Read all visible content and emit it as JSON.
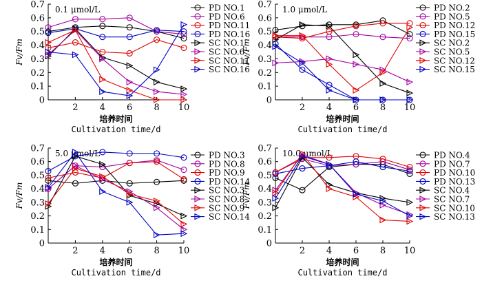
{
  "chart_data": [
    {
      "type": "line",
      "title": "0.1 μmol/L",
      "ylabel": "Fv/Fm",
      "xlabel_cn": "培养时间",
      "xlabel_en": "Cultivation time/d",
      "x": [
        0,
        2,
        4,
        6,
        8,
        10
      ],
      "xticks": [
        2,
        4,
        6,
        8,
        10
      ],
      "yticks": [
        0,
        0.1,
        0.2,
        0.3,
        0.4,
        0.5,
        0.6,
        0.7
      ],
      "xlim": [
        0,
        10
      ],
      "ylim": [
        0,
        0.7
      ],
      "series": [
        {
          "name": "PD NO.1",
          "marker": "circle",
          "color": "#000000",
          "values": [
            0.5,
            0.53,
            0.54,
            0.53,
            0.5,
            0.45
          ]
        },
        {
          "name": "PD NO.6",
          "marker": "circle",
          "color": "#a000a0",
          "values": [
            0.53,
            0.59,
            0.59,
            0.6,
            0.5,
            0.48
          ]
        },
        {
          "name": "PD NO.11",
          "marker": "circle",
          "color": "#e00000",
          "values": [
            0.38,
            0.42,
            0.35,
            0.34,
            0.44,
            0.38
          ]
        },
        {
          "name": "PD NO.16",
          "marker": "circle",
          "color": "#0000c0",
          "values": [
            0.49,
            0.52,
            0.46,
            0.46,
            0.51,
            0.5
          ]
        },
        {
          "name": "SC NO.1",
          "marker": "triangle",
          "color": "#000000",
          "values": [
            0.32,
            0.52,
            0.31,
            0.25,
            0.13,
            0.08
          ]
        },
        {
          "name": "SC NO.6",
          "marker": "triangle",
          "color": "#a000a0",
          "values": [
            0.33,
            0.51,
            0.3,
            0.13,
            0.06,
            0.04
          ]
        },
        {
          "name": "SC NO.11",
          "marker": "triangle",
          "color": "#e00000",
          "values": [
            0.42,
            0.51,
            0.15,
            0.07,
            0.0,
            0.0
          ]
        },
        {
          "name": "SC NO.16",
          "marker": "triangle",
          "color": "#0000c0",
          "values": [
            0.35,
            0.33,
            0.06,
            0.03,
            0.22,
            0.55
          ]
        }
      ]
    },
    {
      "type": "line",
      "title": "1.0 μmol/L",
      "ylabel": "Fv/Fm",
      "xlabel_cn": "培养时间",
      "xlabel_en": "Cultivation time/d",
      "x": [
        0,
        2,
        4,
        6,
        8,
        10
      ],
      "xticks": [
        2,
        4,
        6,
        8,
        10
      ],
      "yticks": [
        0,
        0.1,
        0.2,
        0.3,
        0.4,
        0.5,
        0.6,
        0.7
      ],
      "xlim": [
        0,
        10
      ],
      "ylim": [
        0,
        0.7
      ],
      "series": [
        {
          "name": "PD NO.2",
          "marker": "circle",
          "color": "#000000",
          "values": [
            0.51,
            0.54,
            0.55,
            0.55,
            0.58,
            0.48
          ]
        },
        {
          "name": "PD NO.5",
          "marker": "circle",
          "color": "#a000a0",
          "values": [
            0.46,
            0.46,
            0.46,
            0.48,
            0.46,
            0.45
          ]
        },
        {
          "name": "PD NO.12",
          "marker": "circle",
          "color": "#e00000",
          "values": [
            0.46,
            0.45,
            0.5,
            0.54,
            0.56,
            0.56
          ]
        },
        {
          "name": "PD NO.15",
          "marker": "circle",
          "color": "#0000c0",
          "values": [
            0.41,
            0.22,
            0.11,
            0.0,
            0.0,
            0.0
          ]
        },
        {
          "name": "SC NO.2",
          "marker": "triangle",
          "color": "#000000",
          "values": [
            0.44,
            0.55,
            0.54,
            0.33,
            0.12,
            0.05
          ]
        },
        {
          "name": "SC NO.5",
          "marker": "triangle",
          "color": "#a000a0",
          "values": [
            0.27,
            0.28,
            0.3,
            0.26,
            0.22,
            0.13
          ]
        },
        {
          "name": "SC NO.12",
          "marker": "triangle",
          "color": "#e00000",
          "values": [
            0.47,
            0.47,
            0.26,
            0.07,
            0.2,
            0.53
          ]
        },
        {
          "name": "SC NO.15",
          "marker": "triangle",
          "color": "#0000c0",
          "values": [
            0.39,
            0.27,
            0.07,
            0.0,
            0.0,
            0.0
          ]
        }
      ]
    },
    {
      "type": "line",
      "title": "5.0 μmol/L",
      "ylabel": "Fv/Fm",
      "xlabel_cn": "培养时间",
      "xlabel_en": "Cultivation time/d",
      "x": [
        0,
        2,
        4,
        6,
        8,
        10
      ],
      "xticks": [
        2,
        4,
        6,
        8,
        10
      ],
      "yticks": [
        0,
        0.1,
        0.2,
        0.3,
        0.4,
        0.5,
        0.6,
        0.7
      ],
      "xlim": [
        0,
        10
      ],
      "ylim": [
        0,
        0.7
      ],
      "series": [
        {
          "name": "PD NO.3",
          "marker": "circle",
          "color": "#000000",
          "values": [
            0.46,
            0.44,
            0.46,
            0.44,
            0.45,
            0.46
          ]
        },
        {
          "name": "PD NO.8",
          "marker": "circle",
          "color": "#a000a0",
          "values": [
            0.4,
            0.57,
            0.56,
            0.59,
            0.61,
            0.54
          ]
        },
        {
          "name": "PD NO.9",
          "marker": "circle",
          "color": "#e00000",
          "values": [
            0.48,
            0.52,
            0.48,
            0.59,
            0.6,
            0.47
          ]
        },
        {
          "name": "PD NO.14",
          "marker": "circle",
          "color": "#0000c0",
          "values": [
            0.53,
            0.64,
            0.67,
            0.66,
            0.66,
            0.63
          ]
        },
        {
          "name": "SC NO.3",
          "marker": "triangle",
          "color": "#000000",
          "values": [
            0.27,
            0.64,
            0.58,
            0.35,
            0.29,
            0.2
          ]
        },
        {
          "name": "SC NO.8",
          "marker": "triangle",
          "color": "#a000a0",
          "values": [
            0.4,
            0.57,
            0.47,
            0.38,
            0.26,
            0.1
          ]
        },
        {
          "name": "SC NO.9",
          "marker": "triangle",
          "color": "#e00000",
          "values": [
            0.29,
            0.55,
            0.49,
            0.36,
            0.31,
            0.14
          ]
        },
        {
          "name": "SC NO.14",
          "marker": "triangle",
          "color": "#0000c0",
          "values": [
            0.41,
            0.67,
            0.38,
            0.3,
            0.06,
            0.07
          ]
        }
      ]
    },
    {
      "type": "line",
      "title": "10.0 μmol/L",
      "ylabel": "Fv/Fm",
      "xlabel_cn": "培养时间",
      "xlabel_en": "Cultivation time/d",
      "x": [
        0,
        2,
        4,
        6,
        8,
        10
      ],
      "xticks": [
        2,
        4,
        6,
        8,
        10
      ],
      "yticks": [
        0,
        0.1,
        0.2,
        0.3,
        0.4,
        0.5,
        0.6,
        0.7
      ],
      "xlim": [
        0,
        10
      ],
      "ylim": [
        0,
        0.7
      ],
      "series": [
        {
          "name": "PD NO.4",
          "marker": "circle",
          "color": "#000000",
          "values": [
            0.48,
            0.39,
            0.56,
            0.58,
            0.58,
            0.51
          ]
        },
        {
          "name": "PD NO.7",
          "marker": "circle",
          "color": "#a000a0",
          "values": [
            0.52,
            0.62,
            0.57,
            0.58,
            0.6,
            0.54
          ]
        },
        {
          "name": "PD NO.10",
          "marker": "circle",
          "color": "#e00000",
          "values": [
            0.52,
            0.63,
            0.63,
            0.64,
            0.62,
            0.56
          ]
        },
        {
          "name": "PD NO.13",
          "marker": "circle",
          "color": "#0000c0",
          "values": [
            0.51,
            0.55,
            0.57,
            0.6,
            0.56,
            0.53
          ]
        },
        {
          "name": "SC NO.4",
          "marker": "triangle",
          "color": "#000000",
          "values": [
            0.26,
            0.63,
            0.43,
            0.37,
            0.33,
            0.3
          ]
        },
        {
          "name": "SC NO.7",
          "marker": "triangle",
          "color": "#a000a0",
          "values": [
            0.39,
            0.65,
            0.58,
            0.37,
            0.28,
            0.21
          ]
        },
        {
          "name": "SC NO.10",
          "marker": "triangle",
          "color": "#e00000",
          "values": [
            0.37,
            0.66,
            0.4,
            0.34,
            0.17,
            0.16
          ]
        },
        {
          "name": "SC NO.13",
          "marker": "triangle",
          "color": "#0000c0",
          "values": [
            0.33,
            0.64,
            0.58,
            0.36,
            0.31,
            0.2
          ]
        }
      ]
    }
  ]
}
